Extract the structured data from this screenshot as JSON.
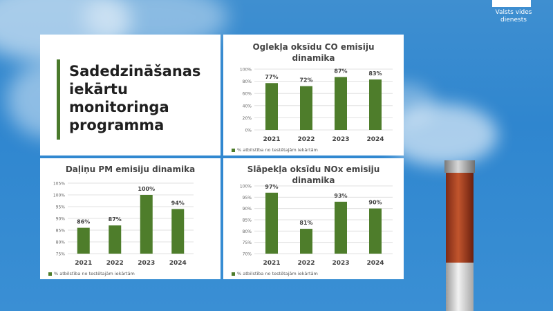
{
  "brand": {
    "logo_line1": "Valsts vides",
    "logo_line2": "dienests"
  },
  "slide_title": "Sadedzināšanas\niekārtu\nmonitoringa\nprogramma",
  "colors": {
    "bar": "#4e7d2b",
    "accent": "#4a7a2c",
    "grid": "#d9d9d9"
  },
  "chart_data": [
    {
      "id": "co",
      "type": "bar",
      "title": "Oglekļa oksīdu CO emisiju dinamika",
      "categories": [
        "2021",
        "2022",
        "2023",
        "2024"
      ],
      "values": [
        77,
        72,
        87,
        83
      ],
      "value_labels": [
        "77%",
        "72%",
        "87%",
        "83%"
      ],
      "ylim": [
        0,
        100
      ],
      "yticks": [
        0,
        20,
        40,
        60,
        80,
        100
      ],
      "ytick_labels": [
        "0%",
        "20%",
        "40%",
        "60%",
        "80%",
        "100%"
      ],
      "legend": "% atbilstība no testētajām iekārtām"
    },
    {
      "id": "pm",
      "type": "bar",
      "title": "Daļiņu PM emisiju dinamika",
      "categories": [
        "2021",
        "2022",
        "2023",
        "2024"
      ],
      "values": [
        86,
        87,
        100,
        94
      ],
      "value_labels": [
        "86%",
        "87%",
        "100%",
        "94%"
      ],
      "ylim": [
        75,
        105
      ],
      "yticks": [
        75,
        80,
        85,
        90,
        95,
        100,
        105
      ],
      "ytick_labels": [
        "75%",
        "80%",
        "85%",
        "90%",
        "95%",
        "100%",
        "105%"
      ],
      "legend": "% atbilstība no testētajām iekārtām"
    },
    {
      "id": "no",
      "type": "bar",
      "title": "Slāpekļa oksīdu NOx emisiju dinamika",
      "categories": [
        "2021",
        "2022",
        "2023",
        "2024"
      ],
      "values": [
        97,
        81,
        93,
        90
      ],
      "value_labels": [
        "97%",
        "81%",
        "93%",
        "90%"
      ],
      "ylim": [
        70,
        100
      ],
      "yticks": [
        70,
        75,
        80,
        85,
        90,
        95,
        100
      ],
      "ytick_labels": [
        "70%",
        "75%",
        "80%",
        "85%",
        "90%",
        "95%",
        "100%"
      ],
      "legend": "% atbilstība no testētajām iekārtām"
    }
  ]
}
